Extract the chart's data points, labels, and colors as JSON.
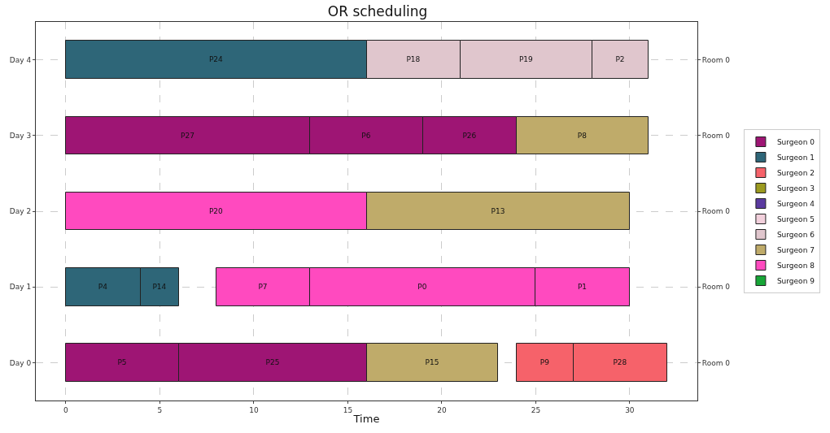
{
  "chart_data": {
    "type": "bar",
    "orientation": "horizontal",
    "title": "OR scheduling",
    "xlabel": "Time",
    "categories": [
      "Day 4",
      "Day 3",
      "Day 2",
      "Day 1",
      "Day 0"
    ],
    "y2_categories": [
      "Room 0",
      "Room 0",
      "Room 0",
      "Room 0",
      "Room 0"
    ],
    "xlim": [
      -1.6,
      33.6
    ],
    "xticks": [
      0,
      5,
      10,
      15,
      20,
      25,
      30
    ],
    "grid": true,
    "legend": "right",
    "series": [
      {
        "name": "Surgeon 0",
        "color": "#9e1574",
        "base": [
          null,
          0,
          null,
          null,
          0
        ],
        "values": [
          null,
          13,
          null,
          null,
          6
        ],
        "value_labels": [
          null,
          "P27",
          null,
          null,
          "P5"
        ]
      },
      {
        "name": "Surgeon 1",
        "color": "#2e6678",
        "base": [
          0,
          null,
          null,
          0,
          null
        ],
        "values": [
          16,
          null,
          null,
          4,
          null
        ],
        "value_labels": [
          "P24",
          null,
          null,
          "P4",
          null
        ]
      },
      {
        "name": "Surgeon 2",
        "color": "#f6626a",
        "base": [
          null,
          null,
          null,
          null,
          24
        ],
        "values": [
          null,
          null,
          null,
          null,
          3
        ],
        "value_labels": [
          null,
          null,
          null,
          null,
          "P9"
        ]
      },
      {
        "name": "Surgeon 3",
        "color": "#9b9a1f",
        "values": [
          null,
          null,
          null,
          null,
          null
        ]
      },
      {
        "name": "Surgeon 4",
        "color": "#5b3aa0",
        "values": [
          null,
          null,
          null,
          null,
          null
        ]
      },
      {
        "name": "Surgeon 5",
        "color": "#f2d0dc",
        "values": [
          null,
          null,
          null,
          null,
          null
        ]
      },
      {
        "name": "Surgeon 6",
        "color": "#e0c6cd",
        "base": [
          16,
          null,
          null,
          null,
          null
        ],
        "values": [
          5,
          null,
          null,
          null,
          null
        ],
        "value_labels": [
          "P18",
          null,
          null,
          null,
          null
        ]
      },
      {
        "name": "Surgeon 7",
        "color": "#bfab6a",
        "base": [
          null,
          24,
          16,
          null,
          16
        ],
        "values": [
          null,
          7,
          14,
          null,
          7
        ],
        "value_labels": [
          null,
          "P8",
          "P13",
          null,
          "P15"
        ]
      },
      {
        "name": "Surgeon 8",
        "color": "#ff4abf",
        "base": [
          null,
          null,
          0,
          8,
          null
        ],
        "values": [
          null,
          null,
          16,
          5,
          null
        ],
        "value_labels": [
          null,
          null,
          "P20",
          "P7",
          null
        ]
      },
      {
        "name": "Surgeon 9",
        "color": "#17a637",
        "values": [
          null,
          null,
          null,
          null,
          null
        ]
      },
      {
        "color": "#9e1574",
        "base": [
          null,
          13,
          null,
          null,
          6
        ],
        "values": [
          null,
          6,
          null,
          null,
          10
        ],
        "value_labels": [
          null,
          "P6",
          null,
          null,
          "P25"
        ]
      },
      {
        "color": "#9e1574",
        "base": [
          null,
          19,
          null,
          null,
          null
        ],
        "values": [
          null,
          5,
          null,
          null,
          null
        ],
        "value_labels": [
          null,
          "P26",
          null,
          null,
          null
        ]
      },
      {
        "color": "#2e6678",
        "base": [
          null,
          null,
          null,
          4,
          null
        ],
        "values": [
          null,
          null,
          null,
          2,
          null
        ],
        "value_labels": [
          null,
          null,
          null,
          "P14",
          null
        ]
      },
      {
        "color": "#f6626a",
        "base": [
          null,
          null,
          null,
          null,
          27
        ],
        "values": [
          null,
          null,
          null,
          null,
          5
        ],
        "value_labels": [
          null,
          null,
          null,
          null,
          "P28"
        ]
      },
      {
        "color": "#e0c6cd",
        "base": [
          21,
          null,
          null,
          null,
          null
        ],
        "values": [
          7,
          null,
          null,
          null,
          null
        ],
        "value_labels": [
          "P19",
          null,
          null,
          null,
          null
        ]
      },
      {
        "color": "#e0c6cd",
        "base": [
          28,
          null,
          null,
          null,
          null
        ],
        "values": [
          3,
          null,
          null,
          null,
          null
        ],
        "value_labels": [
          "P2",
          null,
          null,
          null,
          null
        ]
      },
      {
        "color": "#ff4abf",
        "base": [
          null,
          null,
          null,
          13,
          null
        ],
        "values": [
          null,
          null,
          null,
          12,
          null
        ],
        "value_labels": [
          null,
          null,
          null,
          "P0",
          null
        ]
      },
      {
        "color": "#ff4abf",
        "base": [
          null,
          null,
          null,
          25,
          null
        ],
        "values": [
          null,
          null,
          null,
          5,
          null
        ],
        "value_labels": [
          null,
          null,
          null,
          "P1",
          null
        ]
      }
    ]
  }
}
